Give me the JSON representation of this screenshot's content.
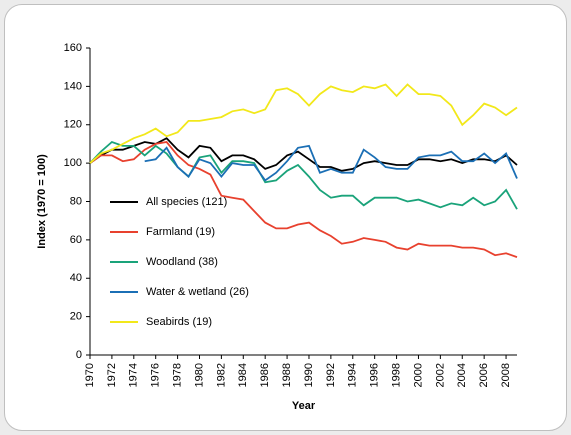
{
  "chart_data": {
    "type": "line",
    "x": [
      1970,
      1971,
      1972,
      1973,
      1974,
      1975,
      1976,
      1977,
      1978,
      1979,
      1980,
      1981,
      1982,
      1983,
      1984,
      1985,
      1986,
      1987,
      1988,
      1989,
      1990,
      1991,
      1992,
      1993,
      1994,
      1995,
      1996,
      1997,
      1998,
      1999,
      2000,
      2001,
      2002,
      2003,
      2004,
      2005,
      2006,
      2007,
      2008,
      2009
    ],
    "series": [
      {
        "name": "All species (121)",
        "color": "#000000",
        "values": [
          100,
          104,
          107,
          107,
          109,
          111,
          110,
          113,
          107,
          103,
          109,
          108,
          101,
          104,
          104,
          102,
          97,
          99,
          104,
          106,
          102,
          98,
          98,
          96,
          97,
          100,
          101,
          100,
          99,
          99,
          102,
          102,
          101,
          102,
          100,
          102,
          102,
          101,
          104,
          99
        ]
      },
      {
        "name": "Farmland (19)",
        "color": "#e8412e",
        "values": [
          100,
          104,
          104,
          101,
          102,
          107,
          110,
          111,
          104,
          99,
          97,
          94,
          83,
          82,
          81,
          75,
          69,
          66,
          66,
          68,
          69,
          65,
          62,
          58,
          59,
          61,
          60,
          59,
          56,
          55,
          58,
          57,
          57,
          57,
          56,
          56,
          55,
          52,
          53,
          51
        ]
      },
      {
        "name": "Woodland (38)",
        "color": "#1aa37a",
        "values": [
          100,
          106,
          111,
          109,
          109,
          104,
          109,
          105,
          98,
          93,
          103,
          104,
          95,
          101,
          101,
          100,
          90,
          91,
          96,
          99,
          93,
          86,
          82,
          83,
          83,
          78,
          82,
          82,
          82,
          80,
          81,
          79,
          77,
          79,
          78,
          82,
          78,
          80,
          86,
          76
        ]
      },
      {
        "name": "Water & wetland (26)",
        "color": "#1b6fb5",
        "values": [
          null,
          null,
          null,
          null,
          null,
          101,
          102,
          108,
          98,
          93,
          102,
          100,
          93,
          100,
          99,
          99,
          91,
          95,
          101,
          108,
          109,
          95,
          97,
          95,
          95,
          107,
          103,
          98,
          97,
          97,
          103,
          104,
          104,
          106,
          101,
          101,
          105,
          100,
          105,
          92
        ]
      },
      {
        "name": "Seabirds (19)",
        "color": "#f2e81a",
        "values": [
          100,
          105,
          107,
          110,
          113,
          115,
          118,
          114,
          116,
          122,
          122,
          123,
          124,
          127,
          128,
          126,
          128,
          138,
          139,
          136,
          130,
          136,
          140,
          138,
          137,
          140,
          139,
          141,
          135,
          141,
          136,
          136,
          135,
          130,
          120,
          125,
          131,
          129,
          125,
          129
        ]
      }
    ],
    "xlabel": "Year",
    "ylabel": "Index (1970 = 100)",
    "xlim": [
      1970,
      2009
    ],
    "ylim": [
      0,
      160
    ],
    "xticks": [
      1970,
      1972,
      1974,
      1976,
      1978,
      1980,
      1982,
      1984,
      1986,
      1988,
      1990,
      1992,
      1994,
      1996,
      1998,
      2000,
      2002,
      2004,
      2006,
      2008
    ],
    "yticks": [
      0,
      20,
      40,
      60,
      80,
      100,
      120,
      140,
      160
    ],
    "legend": "left"
  }
}
